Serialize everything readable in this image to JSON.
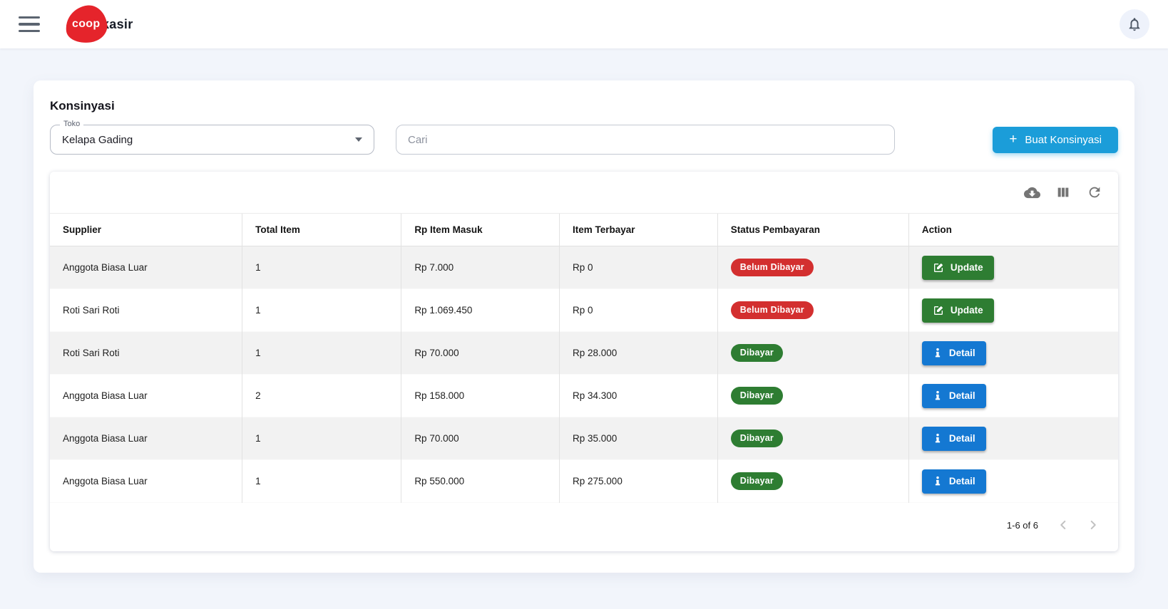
{
  "header": {
    "logo_coop": "coop",
    "logo_kasir": "kasir"
  },
  "page": {
    "title": "Konsinyasi",
    "store_select": {
      "label": "Toko",
      "value": "Kelapa Gading"
    },
    "search": {
      "placeholder": "Cari"
    },
    "create_button": {
      "plus": "+",
      "label": "Buat Konsinyasi"
    }
  },
  "table": {
    "columns": [
      "Supplier",
      "Total Item",
      "Rp Item Masuk",
      "Item Terbayar",
      "Status Pembayaran",
      "Action"
    ],
    "rows": [
      {
        "supplier": "Anggota Biasa Luar",
        "total_item": "1",
        "rp_item_masuk": "Rp 7.000",
        "item_terbayar": "Rp 0",
        "status": "Belum Dibayar",
        "status_type": "unpaid",
        "action": "Update",
        "action_type": "update"
      },
      {
        "supplier": "Roti Sari Roti",
        "total_item": "1",
        "rp_item_masuk": "Rp 1.069.450",
        "item_terbayar": "Rp 0",
        "status": "Belum Dibayar",
        "status_type": "unpaid",
        "action": "Update",
        "action_type": "update"
      },
      {
        "supplier": "Roti Sari Roti",
        "total_item": "1",
        "rp_item_masuk": "Rp 70.000",
        "item_terbayar": "Rp 28.000",
        "status": "Dibayar",
        "status_type": "paid",
        "action": "Detail",
        "action_type": "detail"
      },
      {
        "supplier": "Anggota Biasa Luar",
        "total_item": "2",
        "rp_item_masuk": "Rp 158.000",
        "item_terbayar": "Rp 34.300",
        "status": "Dibayar",
        "status_type": "paid",
        "action": "Detail",
        "action_type": "detail"
      },
      {
        "supplier": "Anggota Biasa Luar",
        "total_item": "1",
        "rp_item_masuk": "Rp 70.000",
        "item_terbayar": "Rp 35.000",
        "status": "Dibayar",
        "status_type": "paid",
        "action": "Detail",
        "action_type": "detail"
      },
      {
        "supplier": "Anggota Biasa Luar",
        "total_item": "1",
        "rp_item_masuk": "Rp 550.000",
        "item_terbayar": "Rp 275.000",
        "status": "Dibayar",
        "status_type": "paid",
        "action": "Detail",
        "action_type": "detail"
      }
    ],
    "toolbar_icons": [
      "cloud-download",
      "view-columns",
      "refresh"
    ],
    "pagination": {
      "range_label": "1-6 of 6"
    }
  },
  "colors": {
    "accent_blue": "#1b9dd9",
    "detail_blue": "#1478d2",
    "green": "#2e7d32",
    "red": "#d32f2f",
    "logo_red": "#e5242b",
    "page_background": "#f2f5fb",
    "badge_unpaid": "#d32f2f",
    "badge_paid": "#2e7d32"
  }
}
